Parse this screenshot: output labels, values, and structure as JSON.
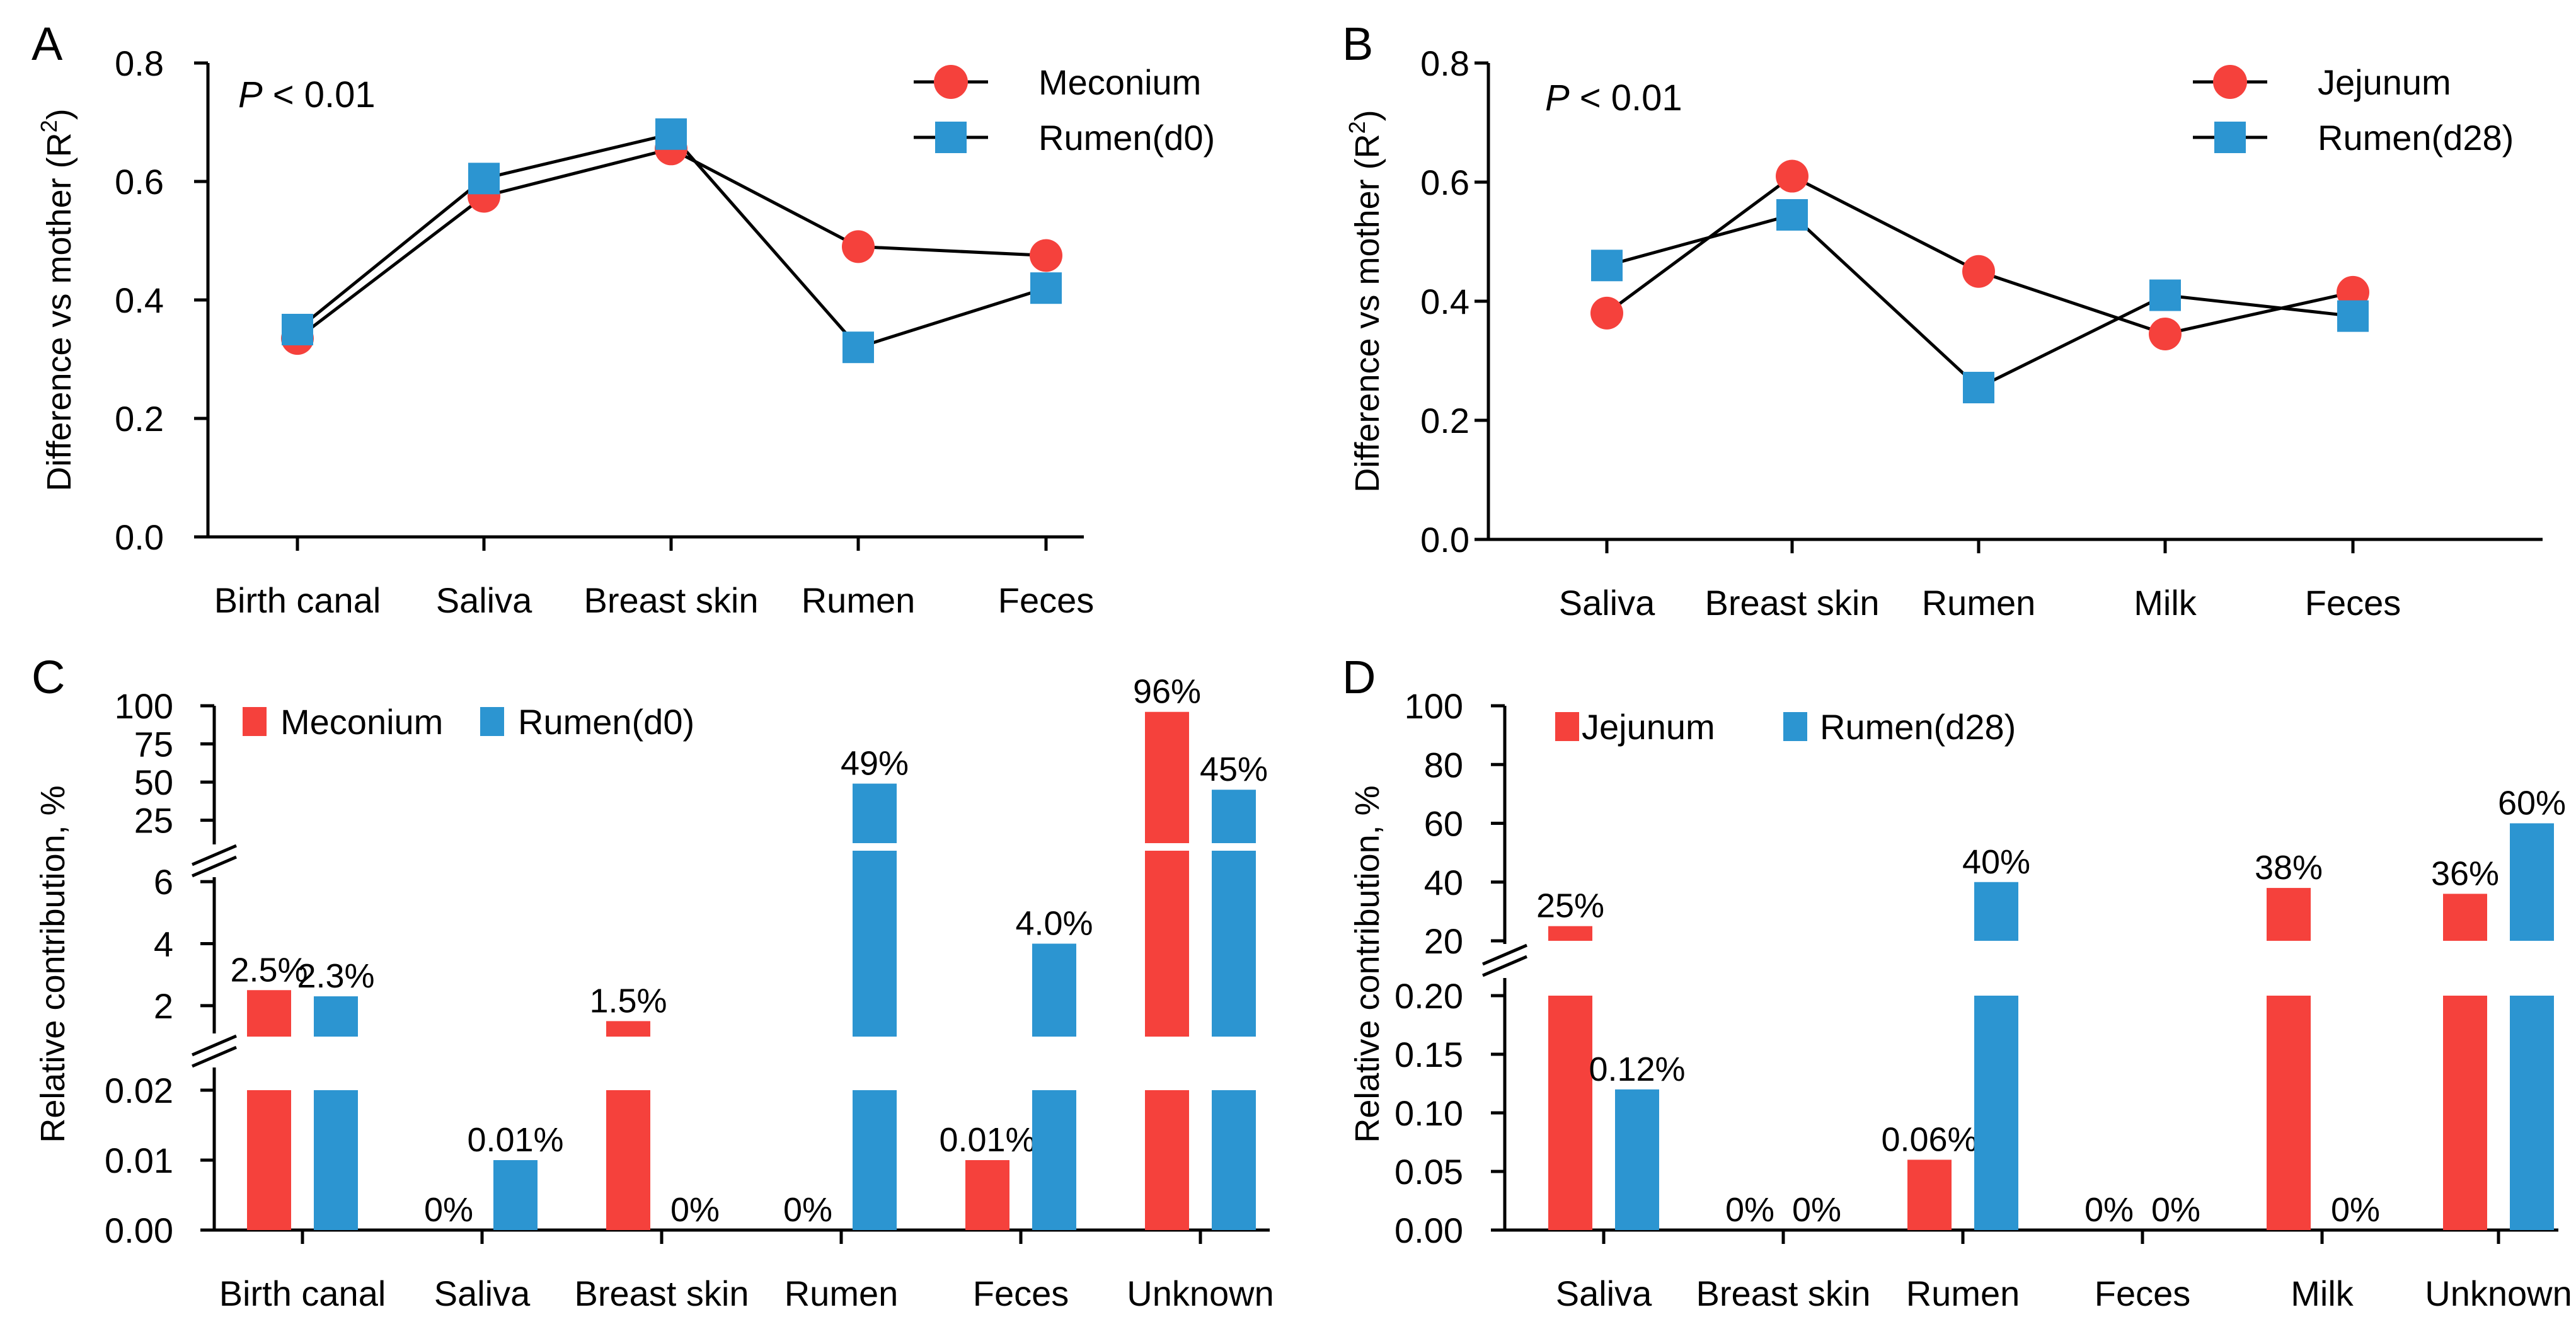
{
  "colors": {
    "red": "#f5413c",
    "blue": "#2c95d1",
    "axis": "#000000"
  },
  "chart_data": [
    {
      "panel": "A",
      "type": "line",
      "categories": [
        "Birth canal",
        "Saliva",
        "Breast skin",
        "Rumen",
        "Feces"
      ],
      "series": [
        {
          "name": "Meconium",
          "marker": "circle",
          "color": "#f5413c",
          "values": [
            0.335,
            0.575,
            0.655,
            0.49,
            0.475
          ]
        },
        {
          "name": "Rumen(d0)",
          "marker": "square",
          "color": "#2c95d1",
          "values": [
            0.35,
            0.605,
            0.68,
            0.32,
            0.42
          ]
        }
      ],
      "annotation": {
        "italic": "P",
        "text": " < 0.01"
      },
      "ylabel_main": "Difference vs mother (R",
      "ylabel_sup": "2",
      "ylabel_end": ")",
      "ylim": [
        0,
        0.8
      ],
      "yticks": [
        "0.0",
        "0.2",
        "0.4",
        "0.6",
        "0.8"
      ]
    },
    {
      "panel": "B",
      "type": "line",
      "categories": [
        "Saliva",
        "Breast skin",
        "Rumen",
        "Milk",
        "Feces"
      ],
      "series": [
        {
          "name": "Jejunum",
          "marker": "circle",
          "color": "#f5413c",
          "values": [
            0.38,
            0.61,
            0.45,
            0.345,
            0.415
          ]
        },
        {
          "name": "Rumen(d28)",
          "marker": "square",
          "color": "#2c95d1",
          "values": [
            0.46,
            0.545,
            0.255,
            0.41,
            0.375
          ]
        }
      ],
      "annotation": {
        "italic": "P",
        "text": " < 0.01"
      },
      "ylabel_main": "Difference vs mother (R",
      "ylabel_sup": "2",
      "ylabel_end": ")",
      "ylim": [
        0,
        0.8
      ],
      "yticks": [
        "0.0",
        "0.2",
        "0.4",
        "0.6",
        "0.8"
      ]
    },
    {
      "panel": "C",
      "type": "bar",
      "categories": [
        "Birth canal",
        "Saliva",
        "Breast skin",
        "Rumen",
        "Feces",
        "Unknown"
      ],
      "series": [
        {
          "name": "Meconium",
          "color": "#f5413c",
          "values": [
            2.5,
            0,
            1.5,
            0,
            0.01,
            96
          ],
          "labels": [
            "2.5%",
            "0%",
            "1.5%",
            "0%",
            "0.01%",
            "96%"
          ]
        },
        {
          "name": "Rumen(d0)",
          "color": "#2c95d1",
          "values": [
            2.3,
            0.01,
            0,
            49,
            4.0,
            45
          ],
          "labels": [
            "2.3%",
            "0.01%",
            "0%",
            "49%",
            "4.0%",
            "45%"
          ]
        }
      ],
      "ylabel": "Relative contribution, %",
      "broken_axis_segments": [
        {
          "range": [
            0,
            0.02
          ],
          "ticks": [
            "0.00",
            "0.01",
            "0.02"
          ]
        },
        {
          "range": [
            1,
            7
          ],
          "ticks": [
            "2",
            "4",
            "6"
          ]
        },
        {
          "range": [
            10,
            100
          ],
          "ticks": [
            "25",
            "50",
            "75",
            "100"
          ]
        }
      ]
    },
    {
      "panel": "D",
      "type": "bar",
      "categories": [
        "Saliva",
        "Breast skin",
        "Rumen",
        "Feces",
        "Milk",
        "Unknown"
      ],
      "series": [
        {
          "name": "Jejunum",
          "color": "#f5413c",
          "values": [
            25,
            0,
            0.06,
            0,
            38,
            36
          ],
          "labels": [
            "25%",
            "0%",
            "0.06%",
            "0%",
            "38%",
            "36%"
          ]
        },
        {
          "name": "Rumen(d28)",
          "color": "#2c95d1",
          "values": [
            0.12,
            0,
            40,
            0,
            0,
            60
          ],
          "labels": [
            "0.12%",
            "0%",
            "40%",
            "0%",
            "0%",
            "60%"
          ]
        }
      ],
      "ylabel": "Relative contribution, %",
      "broken_axis_segments": [
        {
          "range": [
            0,
            0.2
          ],
          "ticks": [
            "0.00",
            "0.05",
            "0.10",
            "0.15",
            "0.20"
          ]
        },
        {
          "range": [
            20,
            100
          ],
          "ticks": [
            "20",
            "40",
            "60",
            "80",
            "100"
          ]
        }
      ]
    }
  ]
}
